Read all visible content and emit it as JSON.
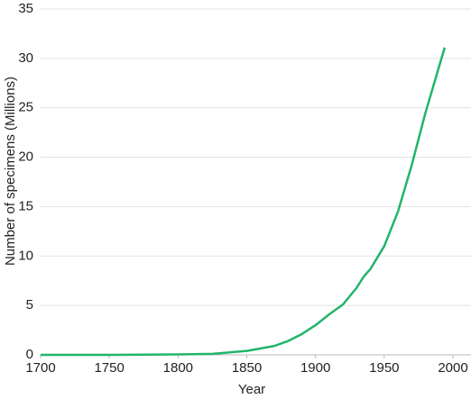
{
  "chart_data": {
    "type": "line",
    "x_label": "Year",
    "y_label": "Number of specimens (Millions)",
    "x": [
      1700,
      1750,
      1800,
      1825,
      1850,
      1870,
      1880,
      1890,
      1900,
      1910,
      1920,
      1930,
      1935,
      1940,
      1950,
      1960,
      1970,
      1980,
      1994
    ],
    "series": [
      {
        "name": "Specimens",
        "color": "#22b56a",
        "values": [
          0,
          0,
          0.05,
          0.1,
          0.4,
          0.9,
          1.4,
          2.1,
          3.0,
          4.1,
          5.1,
          6.8,
          7.9,
          8.7,
          11,
          14.5,
          19.2,
          24.5,
          31.1
        ]
      }
    ],
    "xlim": [
      1700,
      2000
    ],
    "xticks": [
      1700,
      1750,
      1800,
      1850,
      1900,
      1950,
      2000
    ],
    "ylim": [
      0,
      35
    ],
    "yticks": [
      0,
      5,
      10,
      15,
      20,
      25,
      30,
      35
    ],
    "grid": true
  }
}
